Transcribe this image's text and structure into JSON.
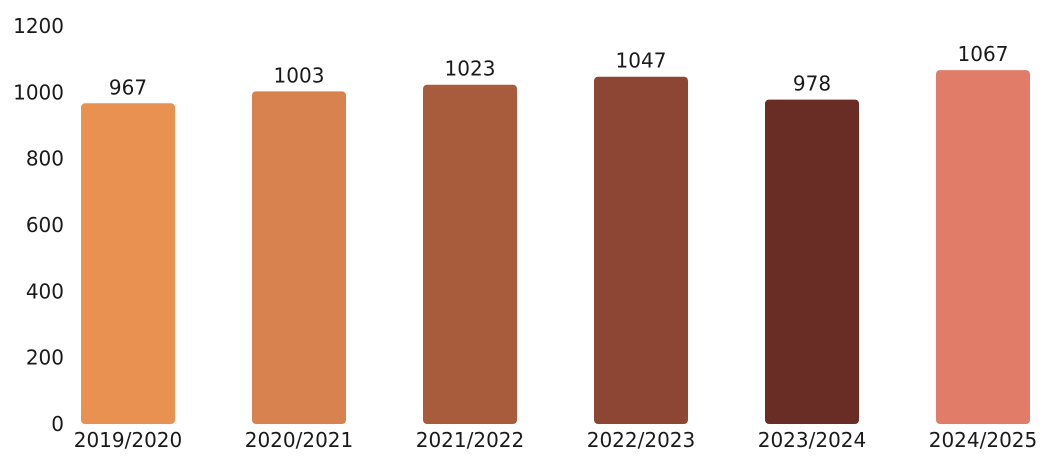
{
  "chart_data": {
    "type": "bar",
    "categories": [
      "2019/2020",
      "2020/2021",
      "2021/2022",
      "2022/2023",
      "2023/2024",
      "2024/2025"
    ],
    "values": [
      967,
      1003,
      1023,
      1047,
      978,
      1067
    ],
    "data_labels": [
      "967",
      "1003",
      "1023",
      "1047",
      "978",
      "1067"
    ],
    "ylim": [
      0,
      1200
    ],
    "yticks": [
      0,
      200,
      400,
      600,
      800,
      1000,
      1200
    ],
    "ytick_labels": [
      "0",
      "200",
      "400",
      "600",
      "800",
      "1000",
      "1200"
    ],
    "bar_colors": [
      "#E89150",
      "#D8834F",
      "#A95C3C",
      "#8E4634",
      "#6A2D25",
      "#E07C68"
    ],
    "grid": false,
    "legend": "none",
    "title": "",
    "xlabel": "",
    "ylabel": ""
  }
}
